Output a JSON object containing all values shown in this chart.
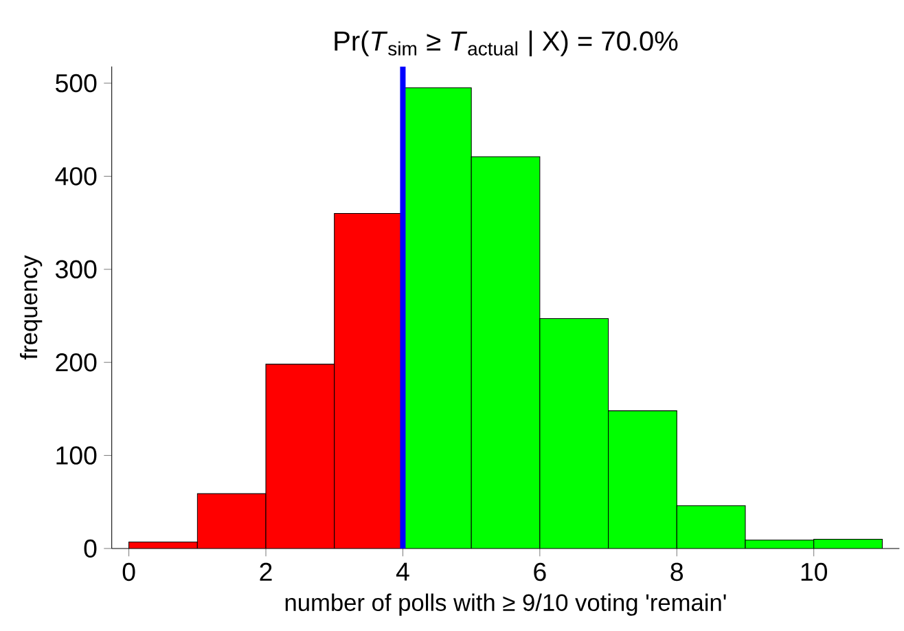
{
  "chart_data": {
    "type": "histogram",
    "title": "Pr(*T*$_{sim}$ ≥ *T*$_{actual}$ | X) = 70.0%",
    "xlabel": "number of polls with ≥ 9/10 voting 'remain'",
    "ylabel": "frequency",
    "bins": [
      0,
      1,
      2,
      3,
      4,
      5,
      6,
      7,
      8,
      9,
      10,
      11
    ],
    "values": [
      7,
      59,
      198,
      360,
      495,
      421,
      247,
      148,
      46,
      9,
      10
    ],
    "colors": [
      "#ff0000",
      "#ff0000",
      "#ff0000",
      "#ff0000",
      "#00ff00",
      "#00ff00",
      "#00ff00",
      "#00ff00",
      "#00ff00",
      "#00ff00",
      "#00ff00"
    ],
    "xlim": [
      -0.25,
      11.25
    ],
    "ylim": [
      0,
      518
    ],
    "xticks": [
      0,
      2,
      4,
      6,
      8,
      10
    ],
    "yticks": [
      0,
      100,
      200,
      300,
      400,
      500
    ],
    "ref_lines": [
      {
        "axis": "x",
        "value": 4,
        "color": "#0000ff"
      }
    ]
  }
}
